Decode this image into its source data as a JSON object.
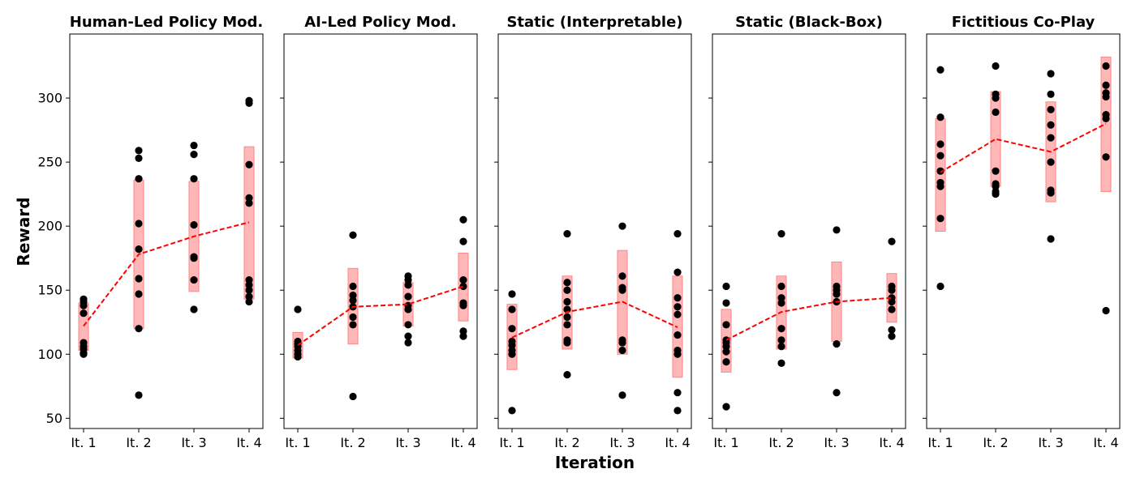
{
  "chart_data": {
    "type": "scatter",
    "ylabel": "Reward",
    "xlabel": "Iteration",
    "categories": [
      "It. 1",
      "It. 2",
      "It. 3",
      "It. 4"
    ],
    "ylim": [
      42,
      350
    ],
    "yticks": [
      50,
      100,
      150,
      200,
      250,
      300
    ],
    "colors": {
      "points": "#000000",
      "mean_line": "#ff0000",
      "band_fill": "#ffb3b3",
      "band_edge": "#ff8080"
    },
    "legend": "none",
    "grid": false,
    "panels": [
      {
        "title": "Human-Led Policy Mod.",
        "points": [
          [
            100,
            101,
            104,
            106,
            109,
            132,
            138,
            141,
            143
          ],
          [
            68,
            120,
            147,
            159,
            182,
            202,
            237,
            253,
            259
          ],
          [
            135,
            158,
            175,
            176,
            201,
            237,
            256,
            263
          ],
          [
            141,
            145,
            150,
            154,
            158,
            218,
            222,
            248,
            296,
            298
          ]
        ],
        "mean": [
          122,
          178,
          192,
          203
        ],
        "band": [
          [
            103,
            140
          ],
          [
            120,
            236
          ],
          [
            149,
            235
          ],
          [
            143,
            262
          ]
        ]
      },
      {
        "title": "AI-Led Policy Mod.",
        "points": [
          [
            98,
            100,
            103,
            106,
            108,
            110,
            135
          ],
          [
            67,
            123,
            129,
            137,
            142,
            146,
            153,
            193
          ],
          [
            109,
            114,
            123,
            135,
            138,
            145,
            154,
            158,
            161
          ],
          [
            114,
            118,
            138,
            140,
            153,
            158,
            188,
            205
          ]
        ],
        "mean": [
          107,
          137,
          139,
          153
        ],
        "band": [
          [
            97,
            117
          ],
          [
            108,
            167
          ],
          [
            122,
            156
          ],
          [
            126,
            179
          ]
        ]
      },
      {
        "title": "Static (Interpretable)",
        "points": [
          [
            56,
            100,
            103,
            107,
            110,
            120,
            135,
            147
          ],
          [
            84,
            109,
            111,
            123,
            129,
            135,
            141,
            150,
            156,
            194
          ],
          [
            68,
            103,
            109,
            111,
            150,
            152,
            161,
            200
          ],
          [
            56,
            70,
            100,
            103,
            115,
            131,
            137,
            144,
            164,
            194
          ]
        ],
        "mean": [
          113,
          133,
          141,
          121
        ],
        "band": [
          [
            88,
            139
          ],
          [
            104,
            161
          ],
          [
            100,
            181
          ],
          [
            82,
            161
          ]
        ]
      },
      {
        "title": "Static (Black-Box)",
        "points": [
          [
            59,
            94,
            102,
            106,
            109,
            111,
            123,
            140,
            153
          ],
          [
            93,
            106,
            111,
            120,
            140,
            144,
            153,
            194
          ],
          [
            70,
            108,
            141,
            147,
            150,
            153,
            197
          ],
          [
            114,
            119,
            135,
            141,
            144,
            150,
            153,
            188
          ]
        ],
        "mean": [
          111,
          133,
          141,
          144
        ],
        "band": [
          [
            86,
            135
          ],
          [
            104,
            161
          ],
          [
            110,
            172
          ],
          [
            125,
            163
          ]
        ]
      },
      {
        "title": "Fictitious Co-Play",
        "points": [
          [
            153,
            206,
            231,
            234,
            243,
            255,
            264,
            285,
            322
          ],
          [
            225,
            227,
            231,
            233,
            243,
            289,
            300,
            303,
            325
          ],
          [
            190,
            226,
            228,
            250,
            269,
            279,
            291,
            303,
            319
          ],
          [
            134,
            254,
            284,
            287,
            301,
            304,
            310,
            325
          ]
        ],
        "mean": [
          242,
          268,
          258,
          280
        ],
        "band": [
          [
            196,
            284
          ],
          [
            231,
            305
          ],
          [
            219,
            297
          ],
          [
            227,
            332
          ]
        ]
      }
    ]
  }
}
